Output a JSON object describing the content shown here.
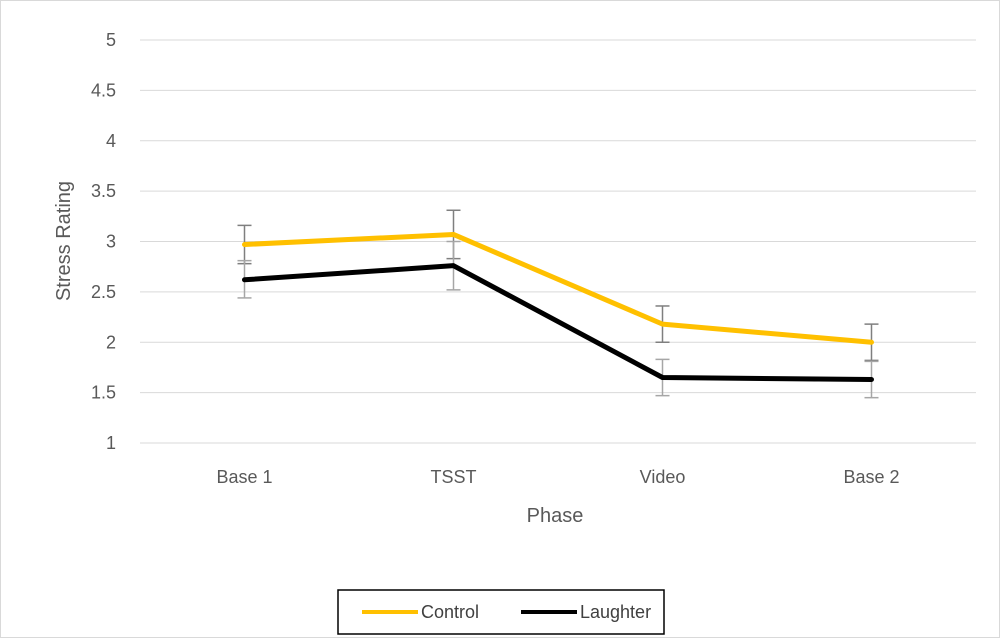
{
  "chart_data": {
    "type": "line",
    "title": "",
    "xlabel": "Phase",
    "ylabel": "Stress Rating",
    "categories": [
      "Base 1",
      "TSST",
      "Video",
      "Base 2"
    ],
    "ylim": [
      1,
      5
    ],
    "yticks": [
      "1",
      "1.5",
      "2",
      "2.5",
      "3",
      "3.5",
      "4",
      "4.5",
      "5"
    ],
    "grid": true,
    "legend_position": "bottom",
    "series": [
      {
        "name": "Control",
        "color": "#FFC000",
        "values": [
          2.97,
          3.07,
          2.18,
          2.0
        ],
        "err_upper": [
          3.16,
          3.31,
          2.36,
          2.18
        ],
        "err_lower": [
          2.78,
          2.83,
          2.0,
          1.82
        ]
      },
      {
        "name": "Laughter",
        "color": "#000000",
        "values": [
          2.62,
          2.76,
          1.65,
          1.63
        ],
        "err_upper": [
          2.81,
          3.0,
          1.83,
          1.81
        ],
        "err_lower": [
          2.44,
          2.52,
          1.47,
          1.45
        ]
      }
    ]
  }
}
